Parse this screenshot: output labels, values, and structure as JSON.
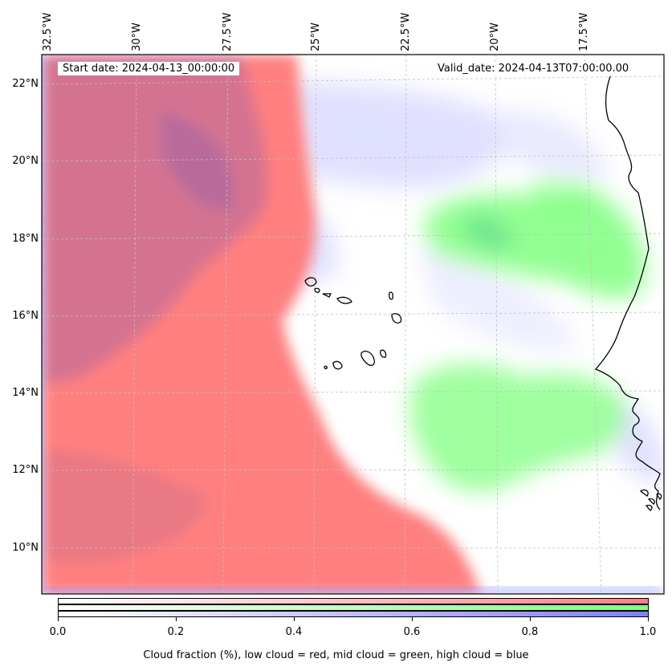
{
  "map": {
    "start_date": "Start date: 2024-04-13_00:00:00",
    "valid_date": "Valid_date: 2024-04-13T07:00:00.00",
    "longitude_labels": [
      "32.5°W",
      "30°W",
      "27.5°W",
      "25°W",
      "22.5°W",
      "20°W",
      "17.5°W"
    ],
    "latitude_labels": [
      "22°N",
      "20°N",
      "18°N",
      "16°N",
      "14°N",
      "12°N",
      "10°N"
    ],
    "colors": {
      "low_cloud": "#ff7f7f",
      "mid_cloud": "#7fff7f",
      "high_cloud": "#7f7fff",
      "coastline": "#000000",
      "gridline": "#c0c0c0"
    }
  },
  "colorbar": {
    "ticks": [
      "0.0",
      "0.2",
      "0.4",
      "0.6",
      "0.8",
      "1.0"
    ],
    "title": "Cloud fraction (%), low cloud = red, mid cloud = green, high cloud = blue"
  }
}
